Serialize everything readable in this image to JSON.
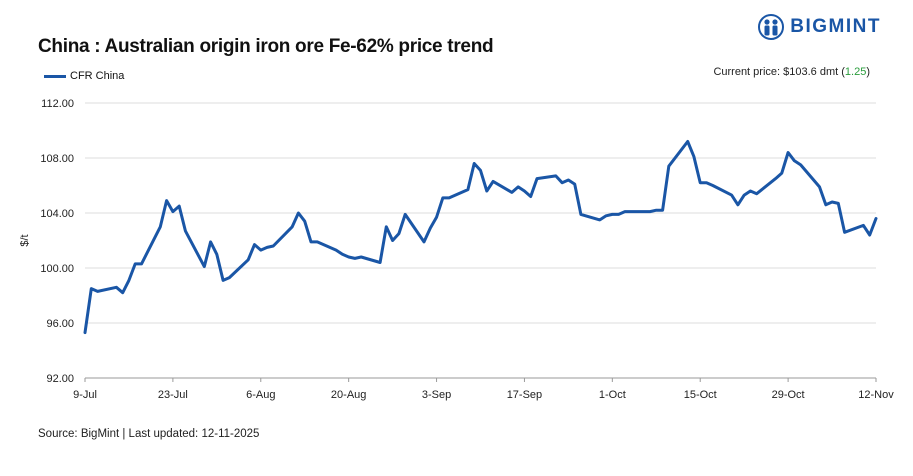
{
  "title": "China : Australian origin iron ore Fe-62% price trend",
  "brand": {
    "name": "BIGMINT",
    "logo_icon": "bigmint-people-icon",
    "color": "#1a56a6"
  },
  "current_price": {
    "label": "Current price: $103.6 dmt",
    "change": "1.25",
    "change_color": "#2a9d3c"
  },
  "source": "Source: BigMint | Last updated: 12-11-2025",
  "chart_data": {
    "type": "line",
    "title": "China : Australian origin iron ore Fe-62% price trend",
    "xlabel": "",
    "ylabel": "$/t",
    "ylim": [
      92,
      112
    ],
    "yticks": [
      "92.00",
      "96.00",
      "100.00",
      "104.00",
      "108.00",
      "112.00"
    ],
    "xticks": [
      "9-Jul",
      "23-Jul",
      "6-Aug",
      "20-Aug",
      "3-Sep",
      "17-Sep",
      "1-Oct",
      "15-Oct",
      "29-Oct",
      "12-Nov"
    ],
    "grid": true,
    "legend": "top-left",
    "series": [
      {
        "name": "CFR China",
        "color": "#1a56a6",
        "x": [
          "2025-07-09",
          "2025-07-10",
          "2025-07-11",
          "2025-07-14",
          "2025-07-15",
          "2025-07-16",
          "2025-07-17",
          "2025-07-18",
          "2025-07-21",
          "2025-07-22",
          "2025-07-23",
          "2025-07-24",
          "2025-07-25",
          "2025-07-28",
          "2025-07-29",
          "2025-07-30",
          "2025-07-31",
          "2025-08-01",
          "2025-08-04",
          "2025-08-05",
          "2025-08-06",
          "2025-08-07",
          "2025-08-08",
          "2025-08-11",
          "2025-08-12",
          "2025-08-13",
          "2025-08-14",
          "2025-08-15",
          "2025-08-18",
          "2025-08-19",
          "2025-08-20",
          "2025-08-21",
          "2025-08-22",
          "2025-08-25",
          "2025-08-26",
          "2025-08-27",
          "2025-08-28",
          "2025-08-29",
          "2025-09-01",
          "2025-09-02",
          "2025-09-03",
          "2025-09-04",
          "2025-09-05",
          "2025-09-08",
          "2025-09-09",
          "2025-09-10",
          "2025-09-11",
          "2025-09-12",
          "2025-09-15",
          "2025-09-16",
          "2025-09-17",
          "2025-09-18",
          "2025-09-19",
          "2025-09-22",
          "2025-09-23",
          "2025-09-24",
          "2025-09-25",
          "2025-09-26",
          "2025-09-29",
          "2025-09-30",
          "2025-10-01",
          "2025-10-02",
          "2025-10-03",
          "2025-10-06",
          "2025-10-07",
          "2025-10-08",
          "2025-10-09",
          "2025-10-10",
          "2025-10-13",
          "2025-10-14",
          "2025-10-15",
          "2025-10-16",
          "2025-10-17",
          "2025-10-20",
          "2025-10-21",
          "2025-10-22",
          "2025-10-23",
          "2025-10-24",
          "2025-10-27",
          "2025-10-28",
          "2025-10-29",
          "2025-10-30",
          "2025-10-31",
          "2025-11-03",
          "2025-11-04",
          "2025-11-05",
          "2025-11-06",
          "2025-11-07",
          "2025-11-10",
          "2025-11-11",
          "2025-11-12"
        ],
        "values": [
          95.3,
          98.5,
          98.3,
          98.6,
          98.2,
          99.1,
          100.3,
          100.3,
          103.0,
          104.9,
          104.1,
          104.5,
          102.7,
          100.1,
          101.9,
          101.0,
          99.1,
          99.3,
          100.6,
          101.7,
          101.3,
          101.5,
          101.6,
          103.0,
          104.0,
          103.4,
          101.9,
          101.9,
          101.3,
          101.0,
          100.8,
          100.7,
          100.8,
          100.4,
          103.0,
          102.0,
          102.5,
          103.9,
          101.9,
          102.9,
          103.7,
          105.1,
          105.1,
          105.7,
          107.6,
          107.1,
          105.6,
          106.3,
          105.5,
          105.9,
          105.6,
          105.2,
          106.5,
          106.7,
          106.2,
          106.4,
          106.1,
          103.9,
          103.5,
          103.8,
          103.9,
          103.9,
          104.1,
          104.1,
          104.1,
          104.2,
          104.2,
          107.4,
          109.2,
          108.1,
          106.2,
          106.2,
          106.0,
          105.3,
          104.6,
          105.3,
          105.6,
          105.4,
          106.5,
          106.9,
          108.4,
          107.8,
          107.5,
          105.9,
          104.6,
          104.8,
          104.7,
          102.6,
          103.1,
          102.4,
          103.6
        ]
      }
    ]
  }
}
